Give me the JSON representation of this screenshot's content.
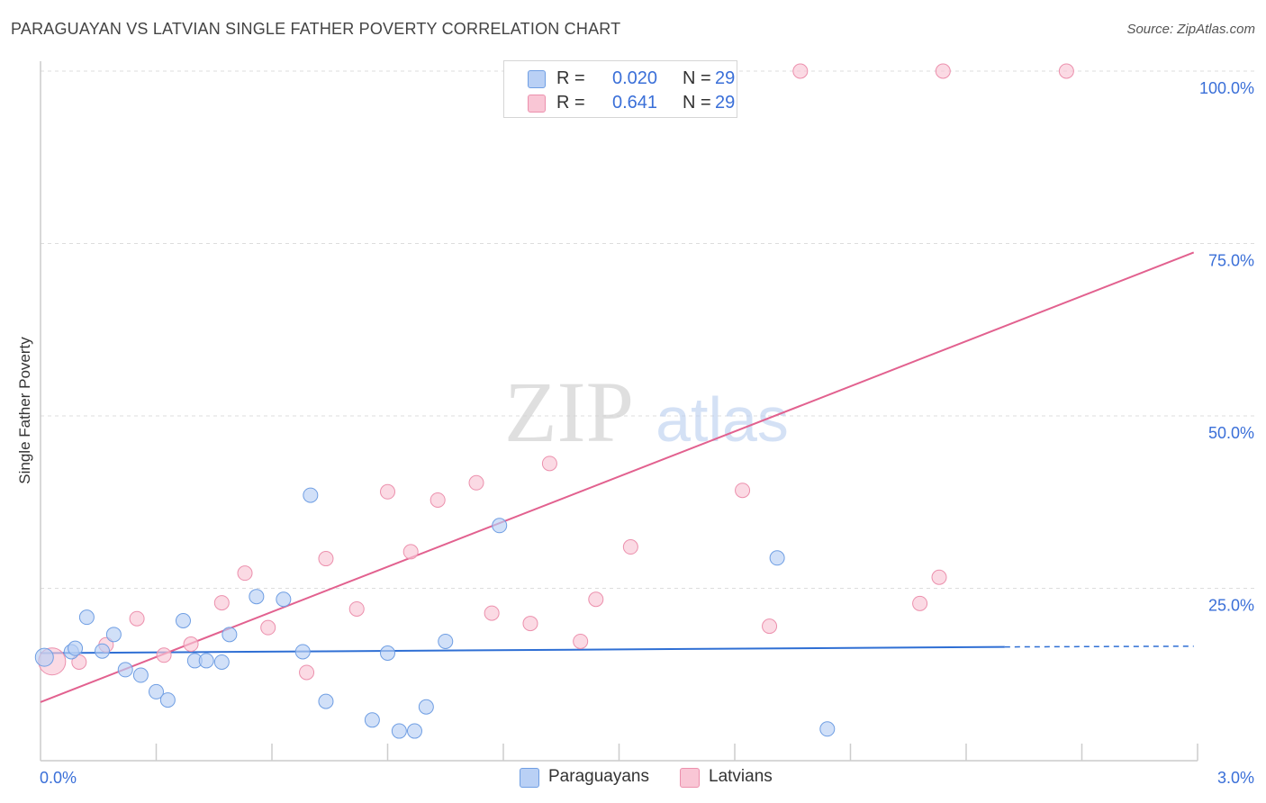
{
  "title": "PARAGUAYAN VS LATVIAN SINGLE FATHER POVERTY CORRELATION CHART",
  "source": "Source: ZipAtlas.com",
  "watermark": {
    "zip": "ZIP",
    "atlas": "atlas"
  },
  "colors": {
    "blue_fill": "#b9d0f5",
    "blue_stroke": "#6f9ee3",
    "blue_line": "#2f6fd4",
    "pink_fill": "#f9c6d5",
    "pink_stroke": "#ec90ad",
    "pink_line": "#e2618f",
    "tick_text": "#3a6fd8",
    "grid": "#dddddd"
  },
  "legend": {
    "rows": [
      {
        "r_label": "R =",
        "r_value": "0.020",
        "n_label": "N =",
        "n_value": "29",
        "color": "#b9d0f5"
      },
      {
        "r_label": "R =",
        "r_value": "0.641",
        "n_label": "N =",
        "n_value": "29",
        "color": "#f9c6d5"
      }
    ]
  },
  "chart_data": {
    "type": "scatter",
    "title": "PARAGUAYAN VS LATVIAN SINGLE FATHER POVERTY CORRELATION CHART",
    "xlabel": "",
    "ylabel": "Single Father Poverty",
    "xlim": [
      0,
      3.0
    ],
    "ylim": [
      0,
      105
    ],
    "x_ticks": [
      "0.0%",
      "3.0%"
    ],
    "y_ticks": [
      {
        "value": 25,
        "label": "25.0%"
      },
      {
        "value": 50,
        "label": "50.0%"
      },
      {
        "value": 75,
        "label": "75.0%"
      },
      {
        "value": 100,
        "label": "100.0%"
      }
    ],
    "grid": true,
    "legend_position": "top-center",
    "series": [
      {
        "name": "Paraguayans",
        "color": "#b9d0f5",
        "points": [
          [
            0.01,
            15.0
          ],
          [
            0.08,
            15.8
          ],
          [
            0.09,
            16.3
          ],
          [
            0.12,
            20.8
          ],
          [
            0.16,
            15.9
          ],
          [
            0.19,
            18.3
          ],
          [
            0.22,
            13.2
          ],
          [
            0.26,
            12.4
          ],
          [
            0.3,
            10.0
          ],
          [
            0.33,
            8.8
          ],
          [
            0.37,
            20.3
          ],
          [
            0.4,
            14.5
          ],
          [
            0.43,
            14.5
          ],
          [
            0.47,
            14.3
          ],
          [
            0.49,
            18.3
          ],
          [
            0.56,
            23.8
          ],
          [
            0.63,
            23.4
          ],
          [
            0.68,
            15.8
          ],
          [
            0.7,
            38.5
          ],
          [
            0.74,
            8.6
          ],
          [
            0.86,
            5.9
          ],
          [
            0.9,
            15.6
          ],
          [
            0.93,
            4.3
          ],
          [
            0.97,
            4.3
          ],
          [
            1.0,
            7.8
          ],
          [
            1.05,
            17.3
          ],
          [
            1.19,
            34.1
          ],
          [
            1.91,
            29.4
          ],
          [
            2.04,
            4.6
          ]
        ],
        "trend": {
          "x": [
            0.0,
            2.5
          ],
          "y": [
            15.6,
            16.5
          ],
          "dashed_extension_to": [
            2.99,
            16.6
          ]
        }
      },
      {
        "name": "Latvians",
        "color": "#f9c6d5",
        "points": [
          [
            0.03,
            14.4
          ],
          [
            0.1,
            14.3
          ],
          [
            0.17,
            16.8
          ],
          [
            0.25,
            20.6
          ],
          [
            0.32,
            15.3
          ],
          [
            0.39,
            16.9
          ],
          [
            0.47,
            22.9
          ],
          [
            0.53,
            27.2
          ],
          [
            0.59,
            19.3
          ],
          [
            0.69,
            12.8
          ],
          [
            0.74,
            29.3
          ],
          [
            0.82,
            22.0
          ],
          [
            0.9,
            39.0
          ],
          [
            0.96,
            30.3
          ],
          [
            1.03,
            37.8
          ],
          [
            1.13,
            40.3
          ],
          [
            1.17,
            21.4
          ],
          [
            1.27,
            19.9
          ],
          [
            1.32,
            43.1
          ],
          [
            1.4,
            17.3
          ],
          [
            1.44,
            23.4
          ],
          [
            1.53,
            31.0
          ],
          [
            1.82,
            39.2
          ],
          [
            1.89,
            19.5
          ],
          [
            1.97,
            100.0
          ],
          [
            2.28,
            22.8
          ],
          [
            2.33,
            26.6
          ],
          [
            2.34,
            100.0
          ],
          [
            2.66,
            100.0
          ]
        ],
        "trend": {
          "x": [
            0.0,
            2.99
          ],
          "y": [
            8.5,
            73.7
          ]
        }
      }
    ]
  },
  "bottom_legend": [
    {
      "label": "Paraguayans",
      "color": "#b9d0f5"
    },
    {
      "label": "Latvians",
      "color": "#f9c6d5"
    }
  ]
}
